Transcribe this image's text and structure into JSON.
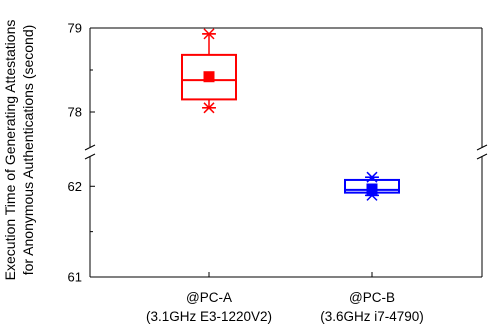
{
  "chart_data": {
    "type": "box",
    "ylabel_lines": [
      "Execution Time of Generating Attestations",
      "for Anonymous Authentications (second)"
    ],
    "y_axis_break": true,
    "y_segments": [
      {
        "range": [
          61,
          62.4
        ],
        "ticks": [
          61,
          62
        ],
        "minor_ticks": [
          61.5
        ]
      },
      {
        "range": [
          77.5,
          79
        ],
        "ticks": [
          78,
          79
        ],
        "minor_ticks": [
          78.5
        ]
      }
    ],
    "categories": [
      {
        "line1": "@PC-A",
        "line2": "(3.1GHz E3-1220V2)"
      },
      {
        "line1": "@PC-B",
        "line2": "(3.6GHz i7-4790)"
      }
    ],
    "boxes": [
      {
        "category": 0,
        "color": "#ff0000",
        "q1": 78.15,
        "median": 78.38,
        "q3": 78.68,
        "whisker_low": 78.05,
        "whisker_high": 78.93,
        "mean": 78.42,
        "outliers": [
          78.05,
          78.93
        ]
      },
      {
        "category": 1,
        "color": "#0000ff",
        "q1": 61.93,
        "median": 61.96,
        "q3": 62.07,
        "whisker_low": 61.9,
        "whisker_high": 62.1,
        "mean": 61.97,
        "outliers": [
          61.9,
          62.1
        ]
      }
    ]
  }
}
